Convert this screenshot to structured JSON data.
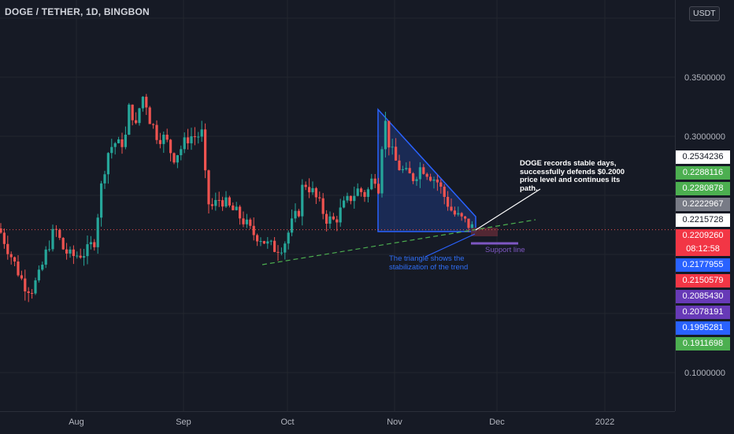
{
  "header": {
    "title": "DOGE / TETHER, 1D, BINGBON",
    "currency": "USDT"
  },
  "colors": {
    "background": "#161a25",
    "grid": "#22262f",
    "text": "#b2b5be",
    "up": "#26a69a",
    "down": "#ef5350",
    "current_line": "#ef5350",
    "triangle_stroke": "#2962ff",
    "triangle_fill": "#2962ff",
    "trendline": "#4caf50",
    "annotation_arrow": "#ffffff",
    "support_line": "#7e57c2"
  },
  "chart_data": {
    "type": "candlestick",
    "title": "DOGE / TETHER, 1D, BINGBON",
    "x_ticks": [
      "Aug",
      "Sep",
      "Oct",
      "Nov",
      "Dec",
      "2022"
    ],
    "y_ticks": [
      "0.3500000",
      "0.3000000",
      "0.1000000"
    ],
    "y_range": [
      0.065,
      0.4
    ],
    "grid": true,
    "price_labels": [
      {
        "value": "0.2534236",
        "bg": "#ffffff",
        "fg": "#131722"
      },
      {
        "value": "0.2288116",
        "bg": "#4caf50",
        "fg": "#ffffff"
      },
      {
        "value": "0.2280878",
        "bg": "#4caf50",
        "fg": "#ffffff"
      },
      {
        "value": "0.2222967",
        "bg": "#787b86",
        "fg": "#ffffff"
      },
      {
        "value": "0.2215728",
        "bg": "#ffffff",
        "fg": "#131722"
      },
      {
        "value": "0.2209260",
        "sub": "08:12:58",
        "bg": "#f23645",
        "fg": "#ffffff"
      },
      {
        "value": "0.2177955",
        "bg": "#2962ff",
        "fg": "#ffffff"
      },
      {
        "value": "0.2150579",
        "bg": "#f23645",
        "fg": "#ffffff"
      },
      {
        "value": "0.2085430",
        "bg": "#673ab7",
        "fg": "#ffffff"
      },
      {
        "value": "0.2078191",
        "bg": "#673ab7",
        "fg": "#ffffff"
      },
      {
        "value": "0.1995281",
        "bg": "#2962ff",
        "fg": "#ffffff"
      },
      {
        "value": "0.1911698",
        "bg": "#4caf50",
        "fg": "#ffffff"
      }
    ],
    "current_price": 0.220926
  },
  "annotations": {
    "note": "DOGE records stable days, successfully defends $0.2000 price level and continues its path.",
    "triangle": "The triangle shows the stabilization of the trend",
    "support": "Support line"
  }
}
